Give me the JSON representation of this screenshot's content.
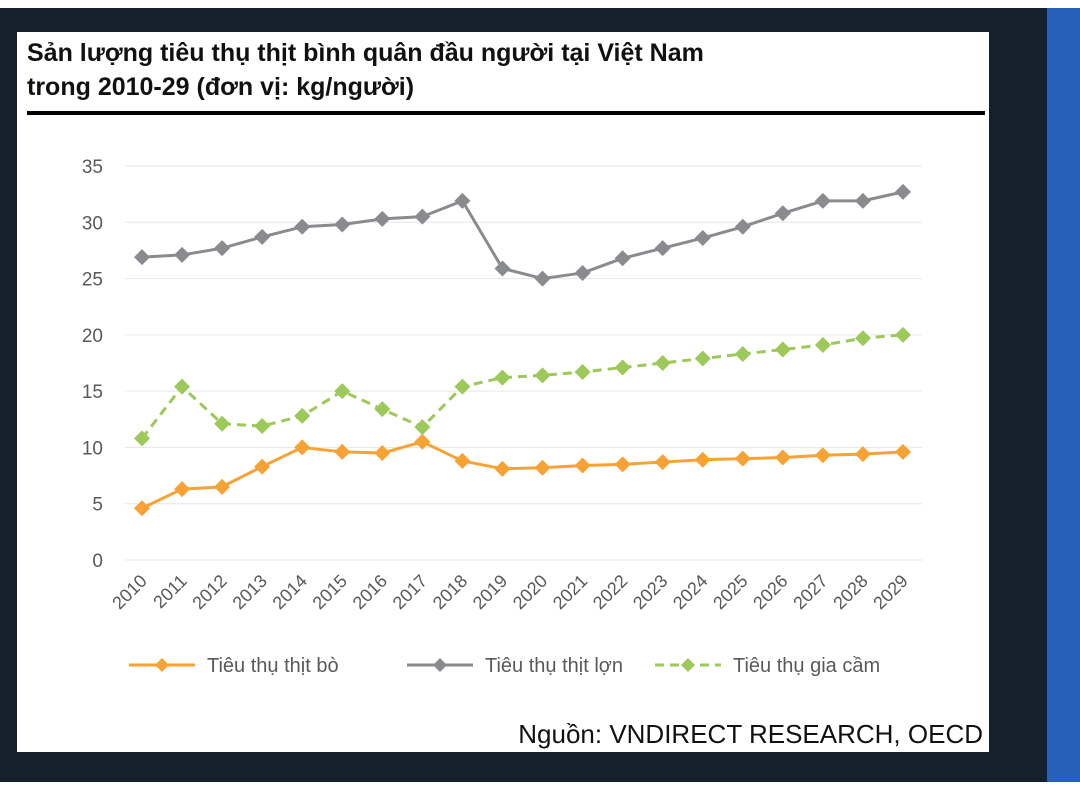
{
  "title_line1": "Sản lượng tiêu thụ thịt bình quân đầu người tại Việt Nam",
  "title_line2": "trong 2010-29 (đơn vị: kg/người)",
  "source": "Nguồn: VNDIRECT RESEARCH, OECD",
  "chart_data": {
    "type": "line",
    "title": "Sản lượng tiêu thụ thịt bình quân đầu người tại Việt Nam trong 2010-29 (đơn vị: kg/người)",
    "xlabel": "",
    "ylabel": "",
    "ylim": [
      0,
      35
    ],
    "yticks": [
      "0",
      "5",
      "10",
      "15",
      "20",
      "25",
      "30",
      "35"
    ],
    "grid": true,
    "legend_position": "bottom",
    "categories": [
      "2010",
      "2011",
      "2012",
      "2013",
      "2014",
      "2015",
      "2016",
      "2017",
      "2018",
      "2019",
      "2020",
      "2021",
      "2022",
      "2023",
      "2024",
      "2025",
      "2026",
      "2027",
      "2028",
      "2029"
    ],
    "series": [
      {
        "name": "Tiêu thụ thịt bò",
        "color": "#f7a234",
        "dashed": false,
        "values": [
          4.6,
          6.3,
          6.5,
          8.3,
          10.0,
          9.6,
          9.5,
          10.5,
          8.8,
          8.1,
          8.2,
          8.4,
          8.5,
          8.7,
          8.9,
          9.0,
          9.1,
          9.3,
          9.4,
          9.6
        ]
      },
      {
        "name": "Tiêu thụ thịt lợn",
        "color": "#8a8b8f",
        "dashed": false,
        "values": [
          26.9,
          27.1,
          27.7,
          28.7,
          29.6,
          29.8,
          30.3,
          30.5,
          31.9,
          25.9,
          25.0,
          25.5,
          26.8,
          27.7,
          28.6,
          29.6,
          30.8,
          31.9,
          31.9,
          32.7
        ]
      },
      {
        "name": "Tiêu thụ gia cầm",
        "color": "#9cc95a",
        "dashed": true,
        "values": [
          10.8,
          15.4,
          12.1,
          11.9,
          12.8,
          15.0,
          13.4,
          11.8,
          15.4,
          16.2,
          16.4,
          16.7,
          17.1,
          17.5,
          17.9,
          18.3,
          18.7,
          19.1,
          19.7,
          20.0
        ]
      }
    ]
  }
}
